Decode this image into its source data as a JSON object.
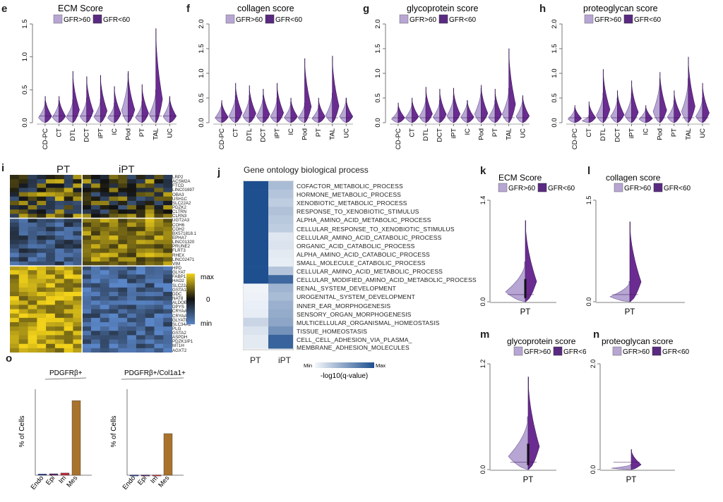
{
  "colors": {
    "gfr_high": "#b7a5d3",
    "gfr_low": "#5a2a82",
    "gfr_low_violin": "#6a2c91",
    "heat_max": "#f2d21a",
    "heat_min": "#5a86c8",
    "heat_mid": "#111111",
    "go_max": "#1e4f8f",
    "go_min": "#f4f7fb",
    "bar_mes": "#a9732e",
    "bar_endo": "#1f3a93",
    "bar_epi": "#5b1f6e",
    "bar_im": "#c0283c"
  },
  "legend_labels": {
    "high": "GFR>60",
    "low": "GFR<60"
  },
  "panels_top": [
    {
      "letter": "e",
      "title": "ECM Score",
      "ymax_label": "1.5",
      "chart_data": {
        "type": "violin",
        "categories": [
          "CD-PC",
          "CT",
          "DTL",
          "DCT",
          "iPT",
          "IC",
          "Pod",
          "PT",
          "TAL",
          "UC"
        ],
        "yticks": [
          "0.0",
          "0.5",
          "1.0",
          "1.5"
        ],
        "ylim": [
          0,
          1.5
        ],
        "series": [
          {
            "name": "GFR>60",
            "max": [
              0.32,
              0.34,
              0.35,
              0.38,
              0.36,
              0.3,
              0.75,
              0.32,
              0.5,
              0.38
            ]
          },
          {
            "name": "GFR<60",
            "max": [
              0.4,
              0.4,
              0.78,
              0.7,
              0.72,
              0.55,
              0.78,
              0.58,
              1.43,
              0.4
            ]
          }
        ]
      }
    },
    {
      "letter": "f",
      "title": "collagen score",
      "chart_data": {
        "type": "violin",
        "categories": [
          "CD-PC",
          "CT",
          "DTL",
          "DCT",
          "iPT",
          "IC",
          "Pod",
          "PT",
          "TAL",
          "UC"
        ],
        "yticks": [
          "0.0",
          "0.5",
          "1.0",
          "1.5",
          "2.0"
        ],
        "ylim": [
          0,
          2.0
        ],
        "series": [
          {
            "name": "GFR>60",
            "max": [
              0.4,
              0.55,
              0.55,
              0.55,
              0.5,
              0.42,
              0.4,
              0.35,
              0.6,
              0.5
            ]
          },
          {
            "name": "GFR<60",
            "max": [
              0.45,
              0.8,
              0.75,
              0.68,
              0.8,
              0.5,
              1.3,
              0.5,
              1.35,
              0.5
            ]
          }
        ]
      }
    },
    {
      "letter": "g",
      "title": "glycoprotein score",
      "chart_data": {
        "type": "violin",
        "categories": [
          "CD-PC",
          "CT",
          "DTL",
          "DCT",
          "iPT",
          "IC",
          "Pod",
          "PT",
          "TAL",
          "UC"
        ],
        "yticks": [
          "0.0",
          "0.5",
          "1.0",
          "1.5",
          "2.0"
        ],
        "ylim": [
          0,
          2.0
        ],
        "series": [
          {
            "name": "GFR>60",
            "max": [
              0.3,
              0.4,
              0.5,
              0.45,
              0.55,
              0.45,
              0.7,
              0.45,
              0.7,
              0.5
            ]
          },
          {
            "name": "GFR<60",
            "max": [
              0.4,
              0.5,
              0.72,
              0.68,
              0.7,
              0.45,
              0.76,
              0.68,
              1.5,
              0.55
            ]
          }
        ]
      }
    },
    {
      "letter": "h",
      "title": "proteoglycan score",
      "chart_data": {
        "type": "violin",
        "categories": [
          "CD-PC",
          "CT",
          "DTL",
          "DCT",
          "iPT",
          "IC",
          "Pod",
          "PT",
          "TAL",
          "UC"
        ],
        "yticks": [
          "0.0",
          "0.5",
          "1.0",
          "1.5",
          "2.0"
        ],
        "ylim": [
          0,
          2.0
        ],
        "series": [
          {
            "name": "GFR>60",
            "max": [
              0.3,
              0.15,
              0.6,
              0.5,
              0.6,
              0.3,
              0.9,
              0.45,
              0.9,
              0.5
            ]
          },
          {
            "name": "GFR<60",
            "max": [
              0.35,
              0.42,
              1.08,
              0.65,
              0.85,
              0.35,
              1.02,
              0.65,
              1.33,
              0.8
            ]
          }
        ]
      }
    }
  ],
  "panel_i": {
    "letter": "i",
    "col_labels": [
      "PT",
      "iPT"
    ],
    "genes": [
      "LRP2",
      "ACSM2A",
      "FTCD",
      "LINC01697",
      "OBA3",
      "USH1C",
      "SLC22A2",
      "PDZK2",
      "CLTRN",
      "CLRN3",
      "UGT2A3",
      "COH6",
      "COH2",
      "BX571818.1",
      "EPHA7",
      "LINC01320",
      "PRUNE2",
      "FLRT3",
      "RHEX",
      "LINC02471",
      "VIM",
      "HPD",
      "GLYAT",
      "FABP1",
      "HAO2",
      "SLC22A6",
      "GSTA1",
      "DDC",
      "NAT8",
      "ALDOB",
      "DPYS",
      "CRYAA2",
      "CRYAA",
      "GLYATL1",
      "SLC34A1",
      "PLG",
      "GSTA2",
      "ASPDH",
      "PDZK1IP1",
      "MT1H",
      "AGXT2"
    ],
    "legend": {
      "max": "max",
      "mid": "0",
      "min": "min"
    }
  },
  "panel_j": {
    "letter": "j",
    "title": "Gene ontology biological process",
    "terms": [
      "COFACTOR_METABOLIC_PROCESS",
      "HORMONE_METABOLIC_PROCESS",
      "XENOBIOTIC_METABOLIC_PROCESS",
      "RESPONSE_TO_XENOBIOTIC_STIMULUS",
      "ALPHA_AMINO_ACID_METABOLIC_PROCESS",
      "CELLULAR_RESPONSE_TO_XENOBIOTIC_STIMULUS",
      "CELLULAR_AMINO_ACID_CATABOLIC_PROCESS",
      "ORGANIC_ACID_CATABOLIC_PROCESS",
      "ALPHA_AMINO_ACID_CATABOLIC_PROCESS",
      "SMALL_MOLECULE_CATABOLIC_PROCESS",
      "CELLULAR_AMINO_ACID_METABOLIC_PROCESS",
      "CELLULAR_MODIFIED_AMINO_ACID_METABOLIC_PROCESS",
      "RENAL_SYSTEM_DEVELOPMENT",
      "UROGENITAL_SYSTEM_DEVELOPMENT",
      "INNER_EAR_MORPHOGENESIS",
      "SENSORY_ORGAN_MORPHOGENESIS",
      "MULTICELLULAR_ORGANISMAL_HOMEOSTASIS",
      "TISSUE_HOMEOSTASIS",
      "CELL_CELL_ADHESION_VIA_PLASMA_"
    ],
    "term_continuation": "MEMBRANE_ADHESION_MOLECULES",
    "columns": [
      "PT",
      "iPT"
    ],
    "scale_min": "Min",
    "scale_max": "Max",
    "scale_label": "-log10(q-value)",
    "chart_data": {
      "type": "heatmap",
      "values_PT": [
        1,
        1,
        1,
        1,
        1,
        1,
        1,
        1,
        1,
        1,
        1,
        1,
        0.02,
        0.03,
        0.05,
        0.06,
        0.2,
        0.12,
        0.08
      ],
      "values_iPT": [
        0.35,
        0.3,
        0.25,
        0.32,
        0.28,
        0.25,
        0.1,
        0.12,
        0.08,
        0.06,
        0.3,
        0.85,
        0.4,
        0.35,
        0.42,
        0.45,
        0.48,
        0.6,
        0.88
      ]
    }
  },
  "panels_small": [
    {
      "letter": "k",
      "title": "ECM Score",
      "xlabel": "PT",
      "yticks": [
        "0.0",
        "1.4"
      ],
      "chart_data": {
        "type": "violin",
        "categories": [
          "PT"
        ],
        "ylim": [
          0,
          1.4
        ],
        "series": [
          {
            "name": "GFR>60",
            "max": 0.55
          },
          {
            "name": "GFR<60",
            "max": 1.12
          }
        ]
      }
    },
    {
      "letter": "l",
      "title": "collagen score",
      "xlabel": "PT",
      "yticks": [
        "0.0",
        "1.5"
      ],
      "chart_data": {
        "type": "violin",
        "categories": [
          "PT"
        ],
        "ylim": [
          0,
          1.5
        ],
        "series": [
          {
            "name": "GFR>60",
            "max": 0.3
          },
          {
            "name": "GFR<60",
            "max": 1.18
          }
        ]
      }
    },
    {
      "letter": "m",
      "title": "glycoprotein score",
      "xlabel": "PT",
      "yticks": [
        "0.0",
        "1.2"
      ],
      "chart_data": {
        "type": "violin",
        "categories": [
          "PT"
        ],
        "ylim": [
          0,
          1.2
        ],
        "series": [
          {
            "name": "GFR>60",
            "max": 0.6
          },
          {
            "name": "GFR<60",
            "max": 1.05
          }
        ]
      }
    },
    {
      "letter": "n",
      "title": "proteoglycan score",
      "xlabel": "PT",
      "yticks": [
        "0.0",
        "2.0"
      ],
      "chart_data": {
        "type": "violin",
        "categories": [
          "PT"
        ],
        "ylim": [
          0,
          2.0
        ],
        "series": [
          {
            "name": "GFR>60",
            "max": 0.1
          },
          {
            "name": "GFR<60",
            "max": 0.38
          }
        ]
      }
    }
  ],
  "panel_o": {
    "letter": "o",
    "charts": [
      {
        "title": "PDGFRβ+",
        "ylabel": "% of Cells",
        "chart_data": {
          "type": "bar",
          "categories": [
            "Endo",
            "Epi",
            "Im",
            "Mes"
          ],
          "values": [
            0.8,
            1.0,
            1.5,
            52
          ],
          "ylim": [
            0,
            60
          ]
        }
      },
      {
        "title": "PDGFRβ+/Col1a1+",
        "ylabel": "% of Cells",
        "chart_data": {
          "type": "bar",
          "categories": [
            "Endo",
            "Epi",
            "Im",
            "Mes"
          ],
          "values": [
            0.2,
            0.2,
            0.2,
            29
          ],
          "ylim": [
            0,
            60
          ]
        }
      }
    ]
  }
}
